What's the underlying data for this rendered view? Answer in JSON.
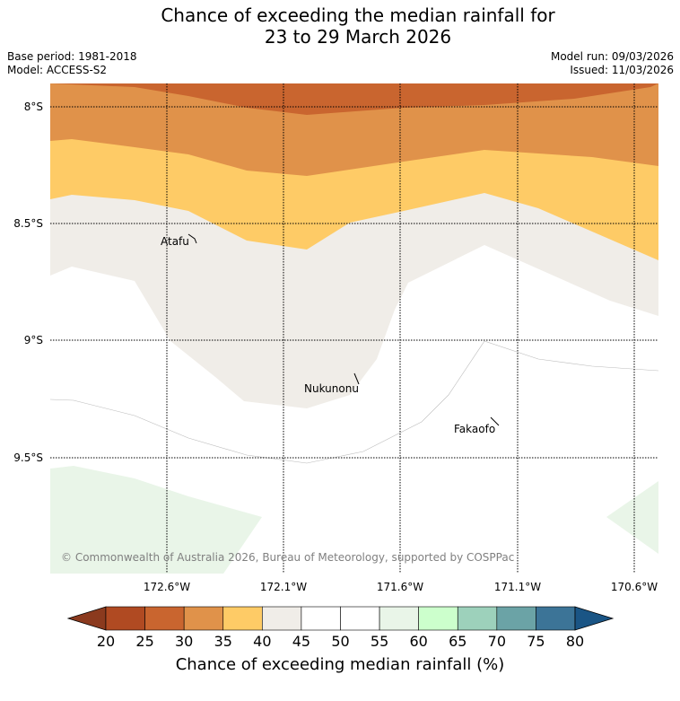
{
  "header": {
    "title_line1": "Chance of exceeding the median rainfall for",
    "title_line2": "23 to 29 March 2026",
    "base_period": "Base period: 1981-2018",
    "model": "Model: ACCESS-S2",
    "model_run": "Model run: 09/03/2026",
    "issued": "Issued: 11/03/2026"
  },
  "axes": {
    "lat_labels": [
      "8°S",
      "8.5°S",
      "9°S",
      "9.5°S"
    ],
    "lon_labels": [
      "172.6°W",
      "172.1°W",
      "171.6°W",
      "171.1°W",
      "170.6°W"
    ]
  },
  "places": [
    {
      "name": "Atafu"
    },
    {
      "name": "Nukunonu"
    },
    {
      "name": "Fakaofo"
    }
  ],
  "copyright": "© Commonwealth of Australia 2026, Bureau of Meteorology, supported by COSPPac",
  "colorbar": {
    "ticks": [
      "20",
      "25",
      "30",
      "35",
      "40",
      "45",
      "50",
      "55",
      "60",
      "65",
      "70",
      "75",
      "80"
    ],
    "colors": [
      "#b04a22",
      "#c9652f",
      "#e0924a",
      "#fecb66",
      "#f0ede8",
      "#ffffff",
      "#ffffff",
      "#e9f5e8",
      "#ccffcc",
      "#9dd1bb",
      "#6ba3a6",
      "#3c7497"
    ],
    "under_color": "#8b3a1e",
    "over_color": "#1a5585",
    "label": "Chance of exceeding median rainfall (%)"
  }
}
